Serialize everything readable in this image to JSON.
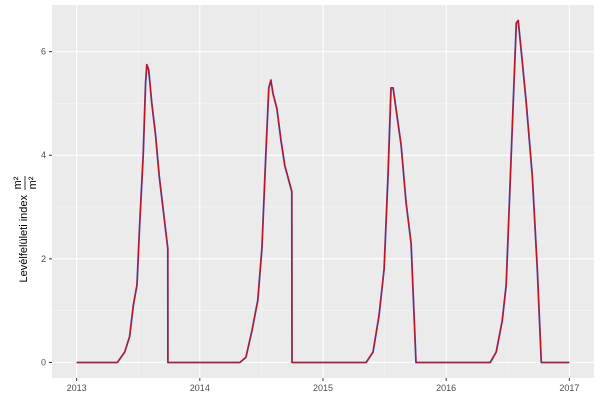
{
  "chart_data": {
    "type": "line",
    "title": "",
    "xlabel": "",
    "ylabel": "Levélfelületi index",
    "ylabel_unit_num": "m²",
    "ylabel_unit_den": "m²",
    "xlim": [
      2012.8,
      2017.2
    ],
    "ylim": [
      -0.3,
      6.9
    ],
    "x_ticks": [
      2013,
      2014,
      2015,
      2016,
      2017
    ],
    "x_tick_labels": [
      "2013",
      "2014",
      "2015",
      "2016",
      "2017"
    ],
    "y_ticks": [
      0,
      2,
      4,
      6
    ],
    "y_tick_labels": [
      "0",
      "2",
      "4",
      "6"
    ],
    "grid": true,
    "background": "#ebebeb",
    "x": [
      2013.0,
      2013.33,
      2013.39,
      2013.43,
      2013.46,
      2013.49,
      2013.51,
      2013.54,
      2013.56,
      2013.57,
      2013.585,
      2013.61,
      2013.64,
      2013.67,
      2013.71,
      2013.74,
      2013.741,
      2014.325,
      2014.374,
      2014.422,
      2014.471,
      2014.504,
      2014.536,
      2014.56,
      2014.577,
      2014.593,
      2014.626,
      2014.658,
      2014.69,
      2014.747,
      2014.748,
      2015.35,
      2015.406,
      2015.455,
      2015.496,
      2015.528,
      2015.552,
      2015.569,
      2015.593,
      2015.634,
      2015.674,
      2015.715,
      2015.755,
      2016.357,
      2016.406,
      2016.455,
      2016.487,
      2016.52,
      2016.552,
      2016.569,
      2016.585,
      2016.61,
      2016.65,
      2016.699,
      2016.74,
      2016.772,
      2017.0
    ],
    "series": [
      {
        "color": "#5a3f9e",
        "values": [
          0,
          0,
          0.2,
          0.5,
          1.1,
          1.5,
          2.6,
          4.0,
          5.4,
          5.75,
          5.65,
          5.0,
          4.4,
          3.6,
          2.8,
          2.2,
          0,
          0,
          0.1,
          0.6,
          1.2,
          2.2,
          4.0,
          5.3,
          5.45,
          5.2,
          4.9,
          4.3,
          3.8,
          3.3,
          0,
          0,
          0.2,
          0.9,
          1.8,
          3.6,
          5.3,
          5.3,
          4.9,
          4.2,
          3.1,
          2.3,
          0,
          0,
          0.2,
          0.8,
          1.5,
          3.5,
          5.5,
          6.55,
          6.6,
          6.0,
          5.0,
          3.6,
          1.8,
          0,
          0
        ]
      },
      {
        "color": "#cc1111",
        "values": [
          0,
          0,
          0.2,
          0.5,
          1.1,
          1.5,
          2.6,
          4.0,
          5.4,
          5.75,
          5.65,
          5.0,
          4.4,
          3.6,
          2.8,
          2.2,
          0,
          0,
          0.1,
          0.6,
          1.2,
          2.2,
          4.0,
          5.3,
          5.45,
          5.2,
          4.9,
          4.3,
          3.8,
          3.3,
          0,
          0,
          0.2,
          0.9,
          1.8,
          3.6,
          5.3,
          5.3,
          4.9,
          4.2,
          3.1,
          2.3,
          0,
          0,
          0.2,
          0.8,
          1.5,
          3.5,
          5.5,
          6.55,
          6.6,
          6.0,
          5.0,
          3.6,
          1.8,
          0,
          0
        ]
      }
    ]
  }
}
